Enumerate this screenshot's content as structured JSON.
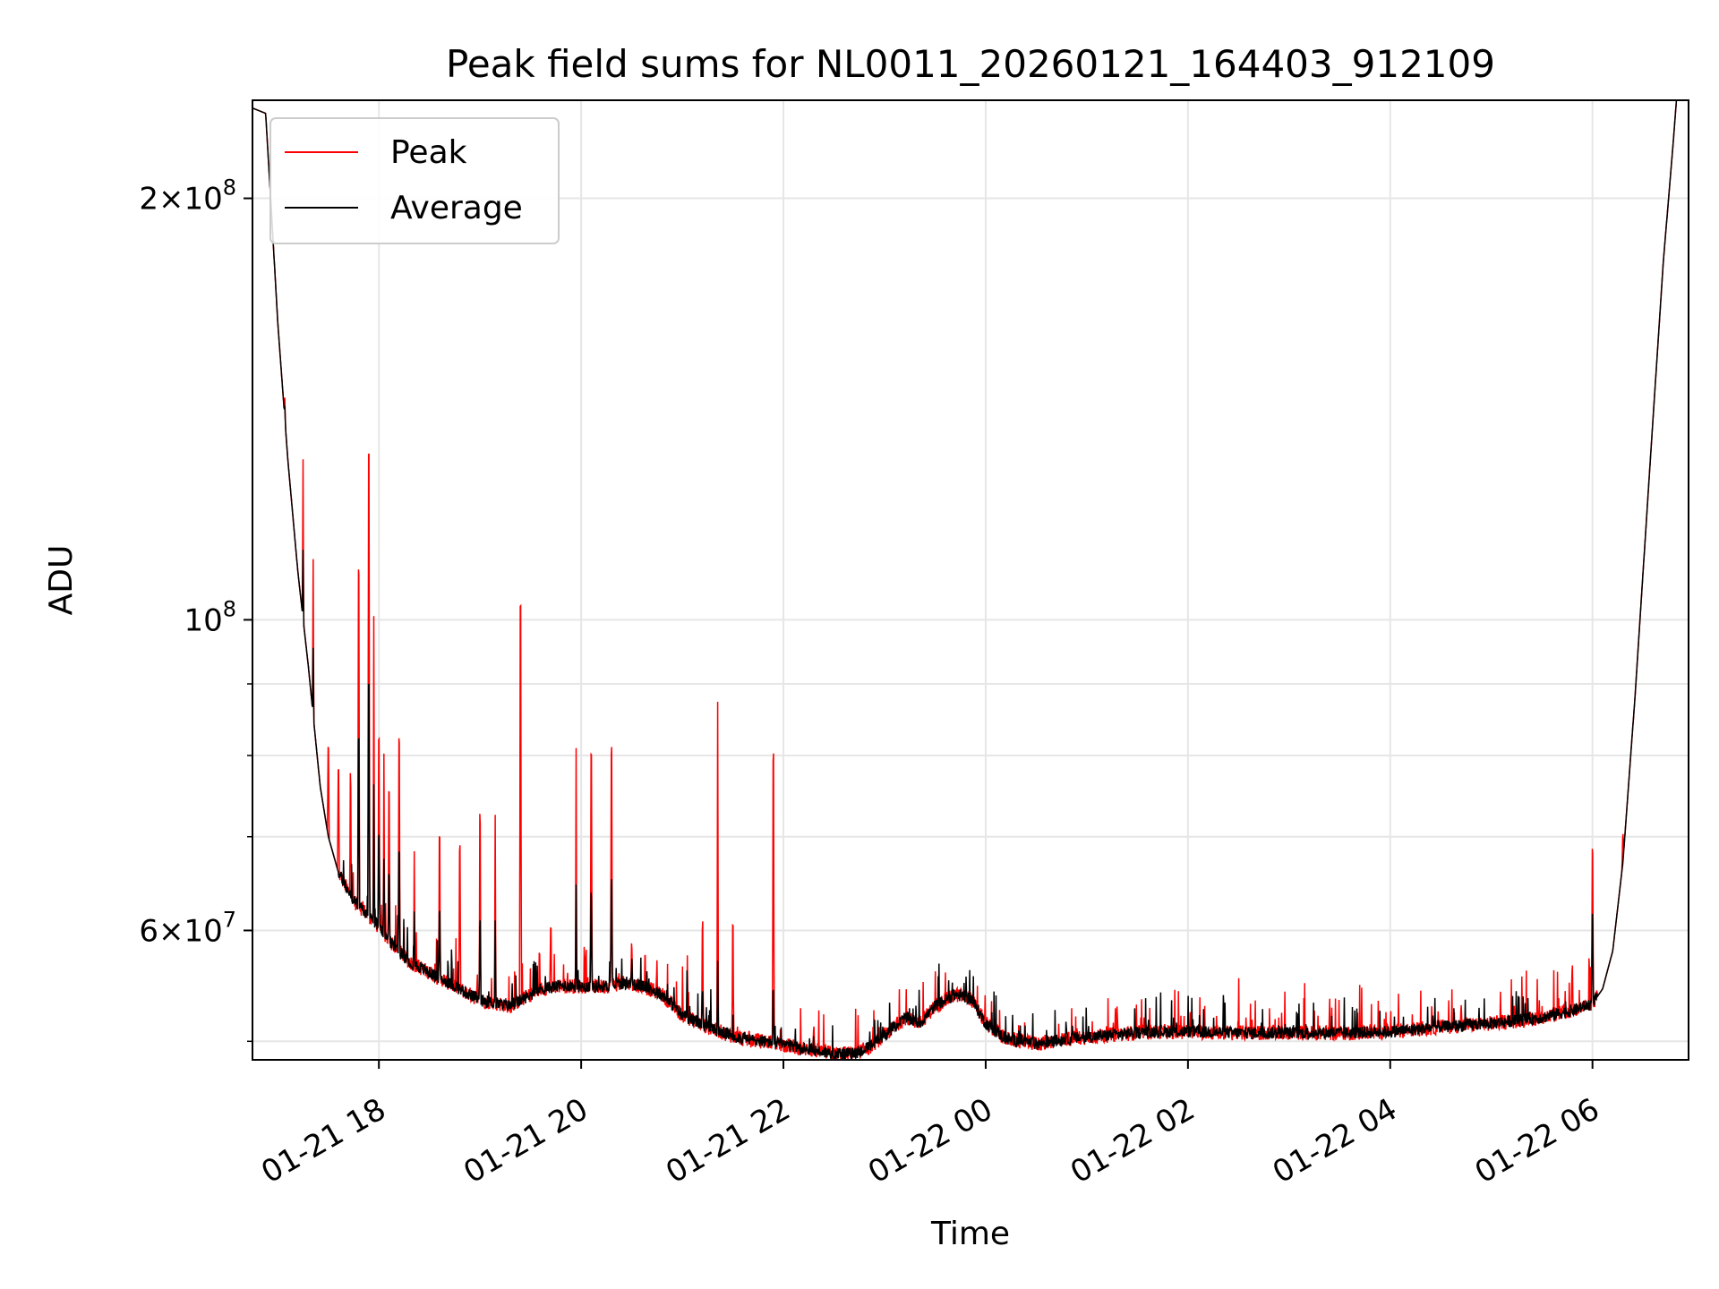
{
  "chart_data": {
    "type": "line",
    "title": "Peak field sums for NL0011_20260121_164403_912109",
    "xlabel": "Time",
    "ylabel": "ADU",
    "yscale": "log",
    "xlim_hours": [
      16.75,
      30.95
    ],
    "ylim": [
      48500000,
      235000000
    ],
    "grid": true,
    "legend_position": "upper-left",
    "x_ticks": [
      {
        "hour": 18,
        "label": "01-21 18"
      },
      {
        "hour": 20,
        "label": "01-21 20"
      },
      {
        "hour": 22,
        "label": "01-21 22"
      },
      {
        "hour": 24,
        "label": "01-22 00"
      },
      {
        "hour": 26,
        "label": "01-22 02"
      },
      {
        "hour": 28,
        "label": "01-22 04"
      },
      {
        "hour": 30,
        "label": "01-22 06"
      }
    ],
    "y_major_ticks": [
      {
        "value": 60000000,
        "base": "6",
        "exp": "7"
      },
      {
        "value": 100000000,
        "base": "",
        "exp": "8"
      },
      {
        "value": 200000000,
        "base": "2",
        "exp": "8"
      }
    ],
    "y_minor_grid": [
      50000000,
      70000000,
      80000000,
      90000000
    ],
    "series": [
      {
        "name": "Peak",
        "color": "#ff0000",
        "baseline_key": "average",
        "spikes": [
          [
            17.07,
            5000000
          ],
          [
            17.25,
            30000000
          ],
          [
            17.35,
            25000000
          ],
          [
            17.5,
            11000000
          ],
          [
            17.6,
            12000000
          ],
          [
            17.72,
            13000000
          ],
          [
            17.8,
            46000000
          ],
          [
            17.9,
            70000000
          ],
          [
            17.95,
            40000000
          ],
          [
            18.0,
            22000000
          ],
          [
            18.05,
            20000000
          ],
          [
            18.1,
            16000000
          ],
          [
            18.2,
            24000000
          ],
          [
            18.35,
            12000000
          ],
          [
            18.6,
            14000000
          ],
          [
            18.8,
            14000000
          ],
          [
            19.0,
            18000000
          ],
          [
            19.15,
            19000000
          ],
          [
            19.4,
            49000000
          ],
          [
            19.7,
            5000000
          ],
          [
            19.95,
            26000000
          ],
          [
            20.1,
            25000000
          ],
          [
            20.3,
            26000000
          ],
          [
            20.5,
            4000000
          ],
          [
            20.75,
            3000000
          ],
          [
            21.05,
            6000000
          ],
          [
            21.2,
            9000000
          ],
          [
            21.35,
            36000000
          ],
          [
            21.5,
            10000000
          ],
          [
            21.9,
            30000000
          ],
          [
            22.3,
            2000000
          ],
          [
            25.3,
            2000000
          ],
          [
            26.5,
            1000000
          ],
          [
            27.4,
            1500000
          ],
          [
            28.7,
            1500000
          ],
          [
            29.8,
            4000000
          ],
          [
            30.0,
            15000000
          ],
          [
            30.3,
            3000000
          ]
        ]
      },
      {
        "name": "Average",
        "color": "#000000",
        "baseline_points": [
          [
            16.75,
            232000000
          ],
          [
            16.88,
            230000000
          ],
          [
            16.93,
            200000000
          ],
          [
            17.0,
            163000000
          ],
          [
            17.1,
            130000000
          ],
          [
            17.2,
            108000000
          ],
          [
            17.3,
            93000000
          ],
          [
            17.42,
            76000000
          ],
          [
            17.5,
            70000000
          ],
          [
            17.6,
            66000000
          ],
          [
            17.75,
            63000000
          ],
          [
            17.95,
            61000000
          ],
          [
            18.1,
            59000000
          ],
          [
            18.3,
            57000000
          ],
          [
            18.6,
            55500000
          ],
          [
            19.0,
            53500000
          ],
          [
            19.3,
            53000000
          ],
          [
            19.6,
            54500000
          ],
          [
            19.8,
            54800000
          ],
          [
            20.2,
            54700000
          ],
          [
            20.4,
            55000000
          ],
          [
            20.6,
            54800000
          ],
          [
            20.8,
            54000000
          ],
          [
            21.0,
            52200000
          ],
          [
            21.3,
            51000000
          ],
          [
            21.6,
            50200000
          ],
          [
            21.9,
            49900000
          ],
          [
            22.2,
            49400000
          ],
          [
            22.5,
            49000000
          ],
          [
            22.7,
            49000000
          ],
          [
            22.85,
            49500000
          ],
          [
            23.0,
            50500000
          ],
          [
            23.2,
            52000000
          ],
          [
            23.35,
            51500000
          ],
          [
            23.5,
            53000000
          ],
          [
            23.7,
            54000000
          ],
          [
            23.85,
            53700000
          ],
          [
            24.0,
            51500000
          ],
          [
            24.2,
            50200000
          ],
          [
            24.5,
            49800000
          ],
          [
            24.8,
            50200000
          ],
          [
            25.2,
            50500000
          ],
          [
            25.6,
            50800000
          ],
          [
            26.0,
            50800000
          ],
          [
            26.5,
            50700000
          ],
          [
            27.0,
            50700000
          ],
          [
            27.5,
            50700000
          ],
          [
            28.0,
            50800000
          ],
          [
            28.5,
            51200000
          ],
          [
            29.0,
            51500000
          ],
          [
            29.5,
            52000000
          ],
          [
            29.8,
            52600000
          ],
          [
            30.0,
            53200000
          ],
          [
            30.1,
            54500000
          ],
          [
            30.2,
            58000000
          ],
          [
            30.3,
            67000000
          ],
          [
            30.42,
            88000000
          ],
          [
            30.55,
            123000000
          ],
          [
            30.7,
            180000000
          ],
          [
            30.8,
            220000000
          ],
          [
            30.84,
            240000000
          ]
        ],
        "spikes": [
          [
            17.07,
            3000000
          ],
          [
            17.25,
            12000000
          ],
          [
            17.35,
            10000000
          ],
          [
            17.8,
            20000000
          ],
          [
            17.9,
            28000000
          ],
          [
            17.95,
            15000000
          ],
          [
            18.0,
            10000000
          ],
          [
            18.05,
            8000000
          ],
          [
            18.1,
            7000000
          ],
          [
            18.2,
            10000000
          ],
          [
            18.35,
            5000000
          ],
          [
            18.6,
            6000000
          ],
          [
            19.0,
            7000000
          ],
          [
            19.15,
            8000000
          ],
          [
            19.95,
            10000000
          ],
          [
            20.1,
            9000000
          ],
          [
            20.3,
            10000000
          ],
          [
            20.5,
            2000000
          ],
          [
            21.05,
            2000000
          ],
          [
            21.2,
            3000000
          ],
          [
            21.35,
            6000000
          ],
          [
            21.9,
            4000000
          ],
          [
            30.0,
            8000000
          ]
        ]
      }
    ]
  }
}
